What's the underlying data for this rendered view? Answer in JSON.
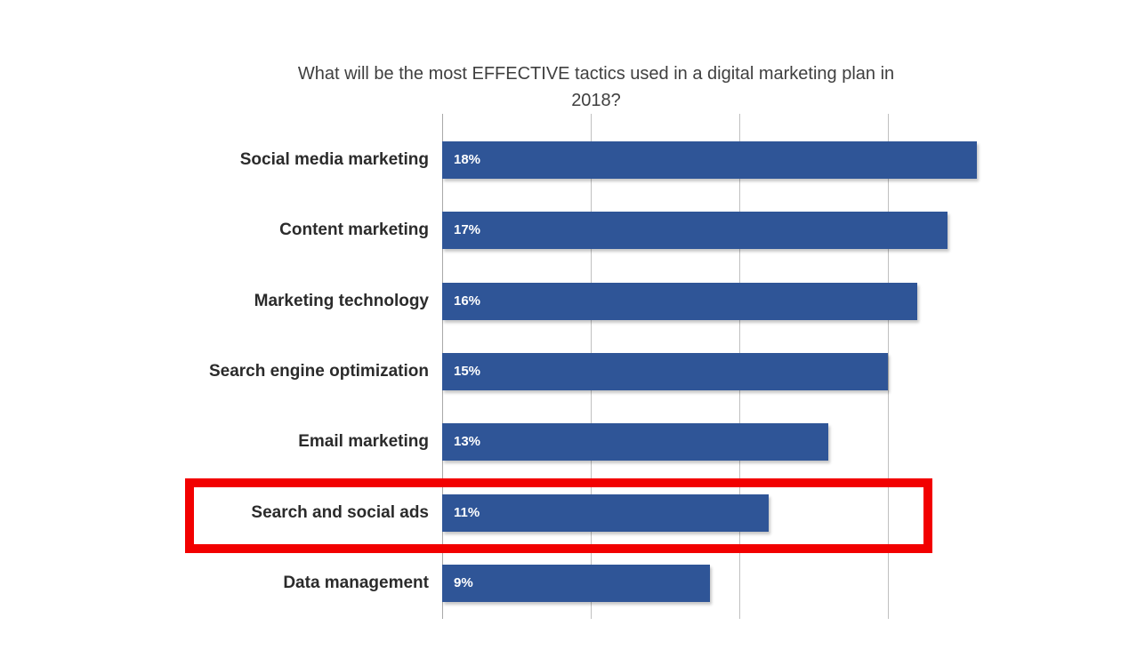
{
  "chart_data": {
    "type": "bar",
    "orientation": "horizontal",
    "title": "What will be the most EFFECTIVE tactics used in a digital marketing plan in 2018?",
    "categories": [
      "Social media marketing",
      "Content marketing",
      "Marketing technology",
      "Search engine optimization",
      "Email marketing",
      "Search and social ads",
      "Data management"
    ],
    "values": [
      18,
      17,
      16,
      15,
      13,
      11,
      9
    ],
    "value_labels": [
      "18%",
      "17%",
      "16%",
      "15%",
      "13%",
      "11%",
      "9%"
    ],
    "xlabel": "",
    "ylabel": "",
    "xlim": [
      0,
      20
    ],
    "gridline_step_percent": 5,
    "grid": true,
    "legend": false,
    "axis_tick_labels_visible": false,
    "bar_color": "#2f5597",
    "value_label_color": "#ffffff",
    "gridline_color": "#c0c0c0",
    "title_color": "#3f3f3f",
    "category_label_color": "#2b2b2b",
    "highlight": {
      "category": "Search and social ads",
      "index": 5,
      "shape": "red-box-annotation",
      "color": "#f20000"
    }
  }
}
